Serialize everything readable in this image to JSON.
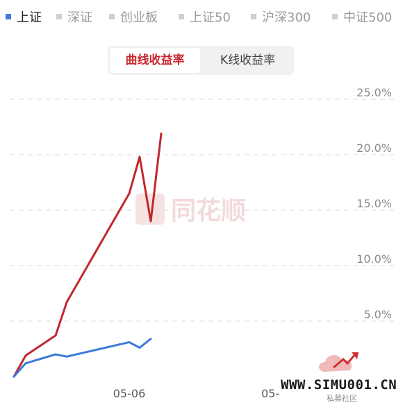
{
  "index_tabs": [
    {
      "label": "上证",
      "active": true
    },
    {
      "label": "深证",
      "active": false
    },
    {
      "label": "创业板",
      "active": false
    },
    {
      "label": "上证50",
      "active": false
    },
    {
      "label": "沪深300",
      "active": false
    },
    {
      "label": "中证500",
      "active": false
    }
  ],
  "mode_toggle": {
    "active_label": "曲线收益率",
    "inactive_label": "K线收益率"
  },
  "watermark": {
    "text": "同花顺"
  },
  "site_logo": {
    "url": "WWW.SIMU001.CN",
    "subtitle": "私募社区"
  },
  "colors": {
    "fund_line": "#c1272d",
    "index_line": "#3d7bd9",
    "accent": "#c8282d"
  },
  "chart_data": {
    "type": "line",
    "title": "",
    "xlabel": "",
    "ylabel": "",
    "y_ticks": [
      "5.0%",
      "10.0%",
      "15.0%",
      "20.0%",
      "25.0%"
    ],
    "x_ticks": [
      "05-06",
      "05-"
    ],
    "ylim": [
      0,
      25
    ],
    "grid": true,
    "series": [
      {
        "color": "#c1272d",
        "values": [
          0,
          1.9,
          3.7,
          6.7,
          16.5,
          19.8,
          14.0,
          21.9
        ]
      },
      {
        "color": "#3d7bd9",
        "values": [
          0,
          1.2,
          2.0,
          1.8,
          3.1,
          2.6,
          3.4
        ]
      }
    ]
  }
}
